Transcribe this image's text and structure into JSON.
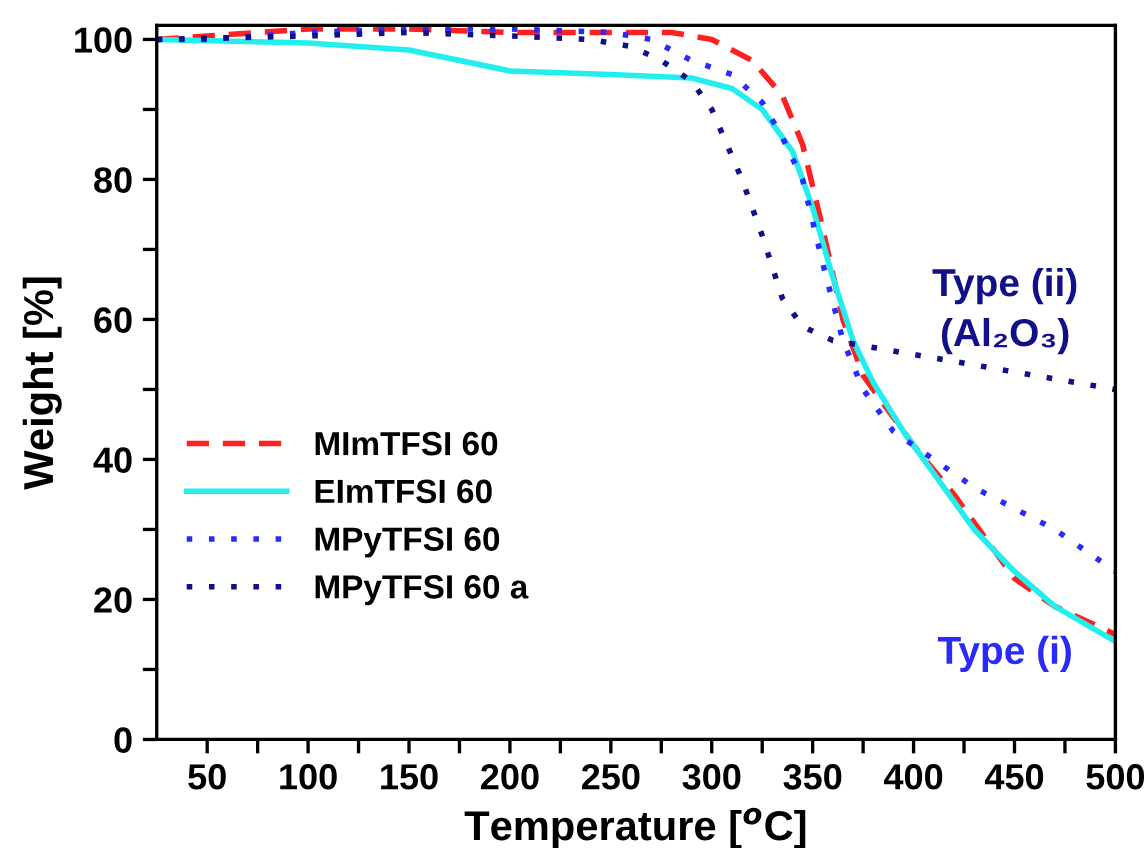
{
  "chart_data": {
    "type": "line",
    "xlabel": "Temperature [$^{o}$C]",
    "ylabel": "Weight [%]",
    "xlim": [
      25,
      500
    ],
    "ylim": [
      0,
      102
    ],
    "xticks": [
      50,
      {
        "value": 75,
        "label": null
      },
      100,
      {
        "value": 125,
        "label": null
      },
      150,
      {
        "value": 175,
        "label": null
      },
      200,
      {
        "value": 225,
        "label": null
      },
      250,
      {
        "value": 275,
        "label": null
      },
      300,
      {
        "value": 325,
        "label": null
      },
      350,
      {
        "value": 375,
        "label": null
      },
      400,
      {
        "value": 425,
        "label": null
      },
      450,
      {
        "value": 475,
        "label": null
      },
      500
    ],
    "yticks": [
      0,
      {
        "value": 10,
        "label": null
      },
      20,
      {
        "value": 30,
        "label": null
      },
      40,
      {
        "value": 50,
        "label": null
      },
      60,
      {
        "value": 70,
        "label": null
      },
      80,
      {
        "value": 90,
        "label": null
      },
      100
    ],
    "grid": false,
    "legend": "left",
    "marker": "none",
    "annotations": [
      "Type (ii)",
      "(Al₂O₃)",
      "Type (i)"
    ],
    "series": [
      {
        "name": "MImTFSI 60",
        "color": "#ff2020",
        "line_style": "dashed",
        "x": [
          25,
          50,
          100,
          150,
          200,
          250,
          280,
          300,
          320,
          335,
          345,
          355,
          365,
          375,
          390,
          400,
          420,
          440,
          450,
          470,
          500
        ],
        "values": [
          100,
          100.5,
          101.5,
          101.5,
          101,
          101,
          101,
          100,
          97,
          92,
          85,
          73,
          60,
          52,
          46,
          42,
          35,
          27,
          23,
          19,
          15
        ]
      },
      {
        "name": "EImTFSI 60",
        "color": "#22eeee",
        "line_style": "solid",
        "x": [
          25,
          100,
          150,
          200,
          250,
          290,
          310,
          325,
          340,
          350,
          360,
          370,
          380,
          395,
          410,
          430,
          450,
          470,
          500
        ],
        "values": [
          100,
          99.5,
          98.5,
          95.5,
          95,
          94.5,
          93,
          90,
          84,
          76,
          66,
          57,
          51,
          44,
          38,
          30,
          24,
          19,
          14
        ]
      },
      {
        "name": "MPyTFSI 60",
        "color": "#2a2aff",
        "line_style": "dotted",
        "x": [
          25,
          50,
          100,
          150,
          200,
          250,
          270,
          290,
          310,
          325,
          335,
          345,
          355,
          365,
          375,
          390,
          410,
          430,
          450,
          470,
          500
        ],
        "values": [
          100,
          100,
          101,
          101.5,
          101.5,
          101,
          100,
          97,
          95,
          91,
          86,
          80,
          68,
          57,
          50,
          44,
          40,
          36,
          33,
          30,
          24
        ]
      },
      {
        "name": "MPyTFSI 60 a",
        "color": "#10108a",
        "line_style": "dotted",
        "x": [
          25,
          100,
          150,
          200,
          240,
          260,
          275,
          290,
          300,
          315,
          325,
          335,
          345,
          360,
          380,
          400,
          420,
          450,
          480,
          500
        ],
        "values": [
          100,
          100.5,
          101,
          100.5,
          100,
          99,
          97,
          94,
          90,
          80,
          72,
          63,
          59,
          57,
          56,
          55,
          54,
          52.5,
          51,
          50
        ]
      }
    ]
  }
}
